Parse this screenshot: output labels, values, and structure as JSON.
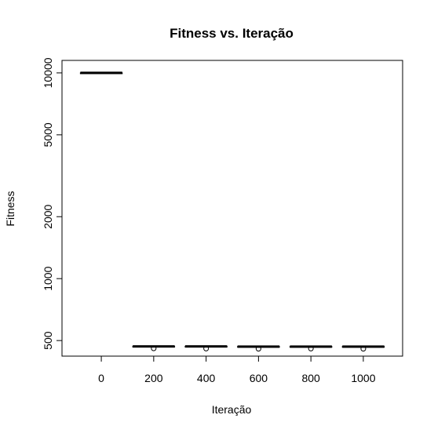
{
  "chart_data": {
    "type": "box",
    "title": "Fitness vs. Iteração",
    "xlabel": "Iteração",
    "ylabel": "Fitness",
    "y_scale": "log",
    "ylim": [
      420,
      11500
    ],
    "y_ticks": [
      500,
      1000,
      2000,
      5000,
      10000
    ],
    "y_tick_labels": [
      "500",
      "1000",
      "2000",
      "5000",
      "10000"
    ],
    "categories": [
      "0",
      "200",
      "400",
      "600",
      "800",
      "1000"
    ],
    "boxes": [
      {
        "category": "0",
        "min": 10000,
        "q1": 10000,
        "median": 10000,
        "q3": 10000,
        "max": 10000,
        "outliers": []
      },
      {
        "category": "200",
        "min": 466,
        "q1": 467,
        "median": 468,
        "q3": 469,
        "max": 472,
        "outliers": [
          458
        ]
      },
      {
        "category": "400",
        "min": 466,
        "q1": 467,
        "median": 468,
        "q3": 469,
        "max": 472,
        "outliers": [
          457
        ]
      },
      {
        "category": "600",
        "min": 464,
        "q1": 466,
        "median": 467,
        "q3": 468,
        "max": 470,
        "outliers": [
          456
        ]
      },
      {
        "category": "800",
        "min": 464,
        "q1": 466,
        "median": 467,
        "q3": 468,
        "max": 470,
        "outliers": [
          457
        ]
      },
      {
        "category": "1000",
        "min": 465,
        "q1": 466,
        "median": 467,
        "q3": 468,
        "max": 470,
        "outliers": [
          456
        ]
      }
    ],
    "grid": false,
    "legend": "none"
  }
}
